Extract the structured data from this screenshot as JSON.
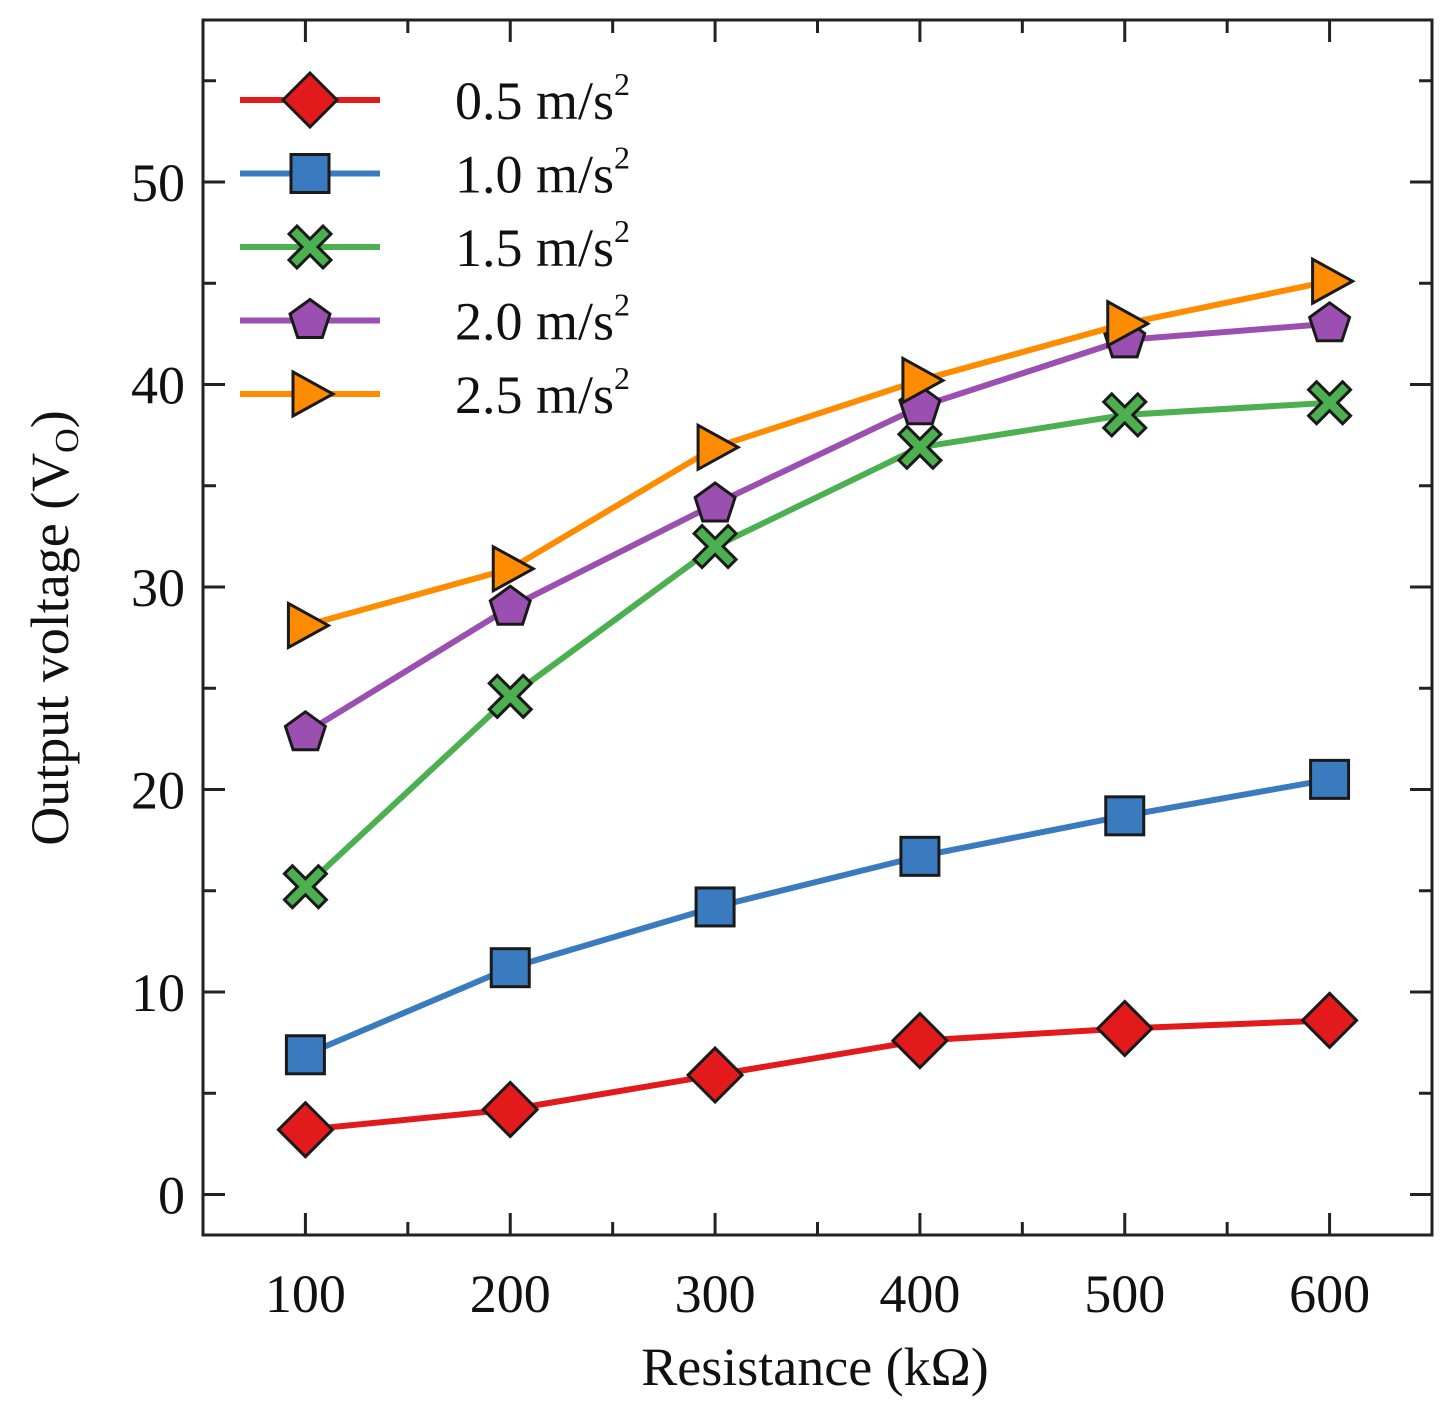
{
  "chart_data": {
    "type": "line",
    "title": "",
    "xlabel": "Resistance (kΩ)",
    "ylabel_main": "Output voltage (V",
    "ylabel_sub": "O",
    "ylabel_close": ")",
    "x": [
      100,
      200,
      300,
      400,
      500,
      600
    ],
    "xlim": [
      50,
      650
    ],
    "ylim": [
      -2,
      58
    ],
    "xticks": [
      100,
      200,
      300,
      400,
      500,
      600
    ],
    "yticks": [
      0,
      10,
      20,
      30,
      40,
      50
    ],
    "grid": false,
    "legend_position": "top-left",
    "unit_base": "m/s",
    "unit_sup": "2",
    "series": [
      {
        "name": "0.5",
        "color": "#e31a1c",
        "marker": "diamond",
        "values": [
          3.2,
          4.2,
          5.9,
          7.6,
          8.2,
          8.6
        ]
      },
      {
        "name": "1.0",
        "color": "#3a7bbf",
        "marker": "square",
        "values": [
          6.9,
          11.2,
          14.2,
          16.7,
          18.7,
          20.5
        ]
      },
      {
        "name": "1.5",
        "color": "#4caf50",
        "marker": "x",
        "values": [
          15.2,
          24.6,
          32.0,
          36.9,
          38.5,
          39.1
        ]
      },
      {
        "name": "2.0",
        "color": "#9b4fb0",
        "marker": "pentagon",
        "values": [
          22.8,
          29.0,
          34.1,
          38.9,
          42.2,
          43.0
        ]
      },
      {
        "name": "2.5",
        "color": "#ff8c00",
        "marker": "triangle-right",
        "values": [
          28.1,
          30.9,
          36.9,
          40.2,
          43.0,
          45.1
        ]
      }
    ]
  }
}
